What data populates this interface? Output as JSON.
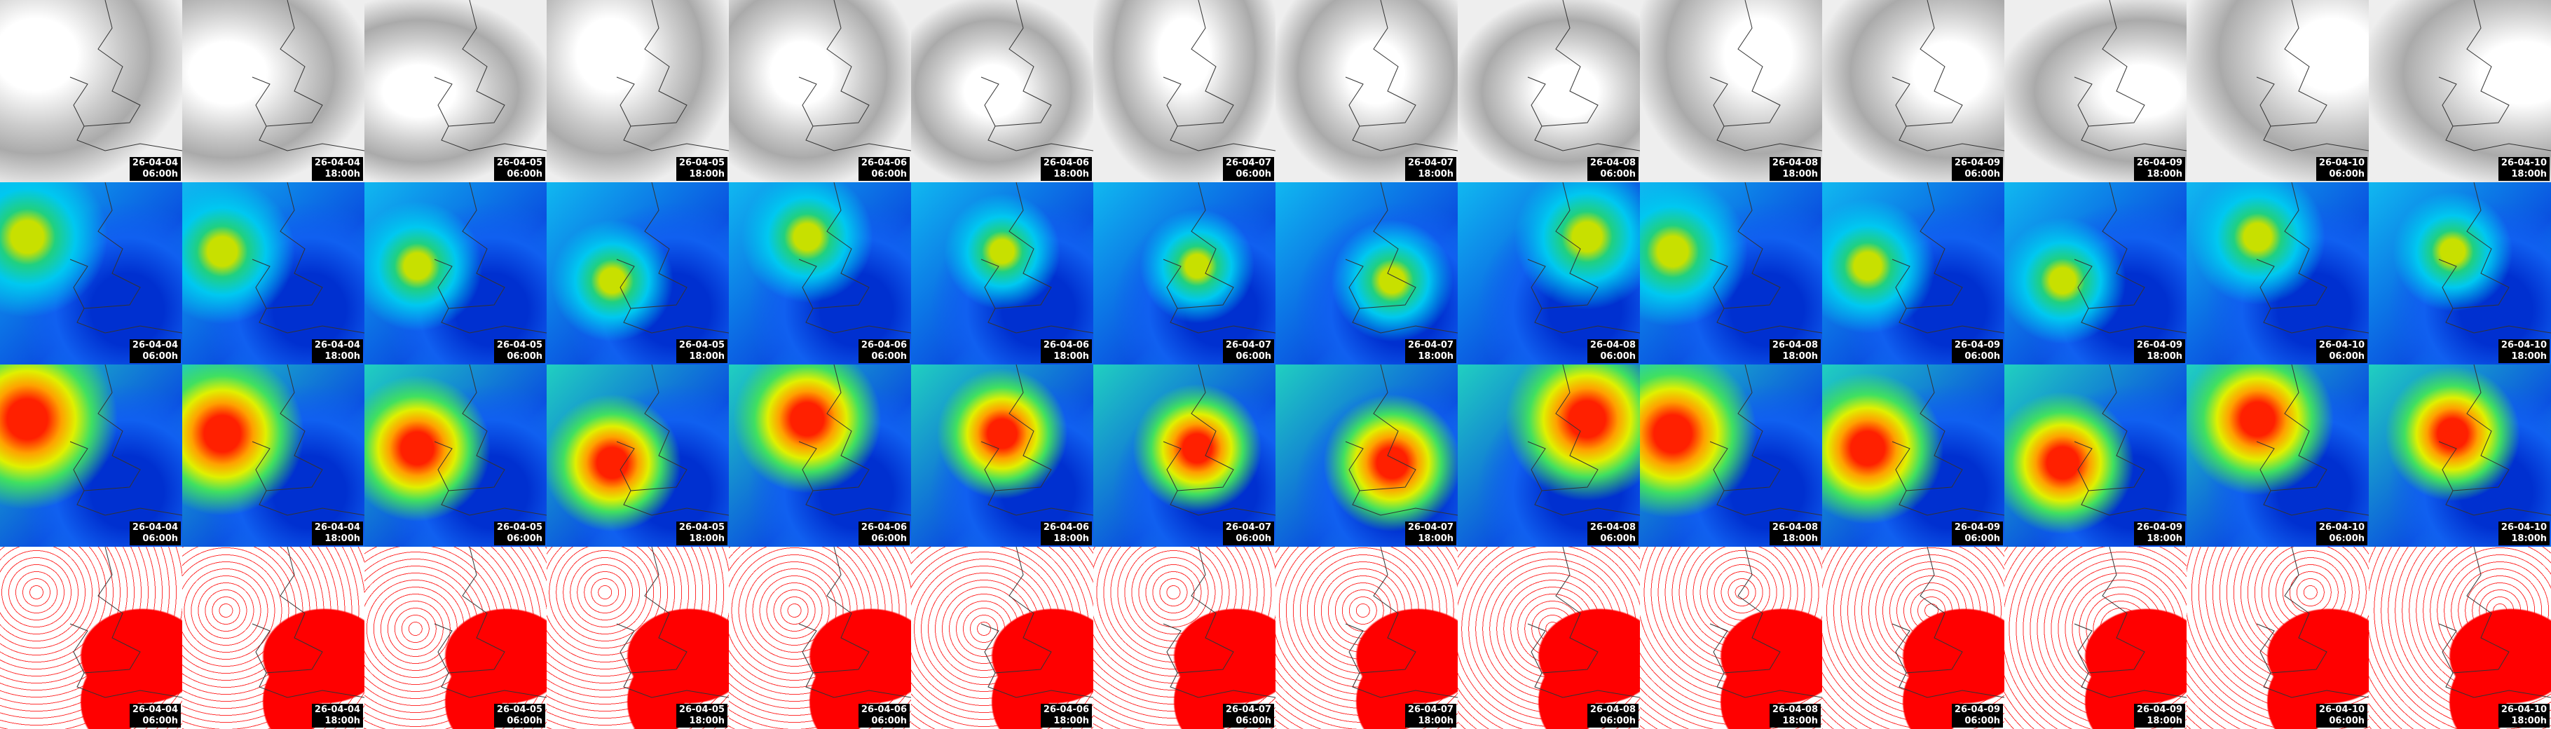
{
  "tiles": [
    {
      "date": "26-04-04",
      "time": "06:00h"
    },
    {
      "date": "26-04-04",
      "time": "18:00h"
    },
    {
      "date": "26-04-05",
      "time": "06:00h"
    },
    {
      "date": "26-04-05",
      "time": "18:00h"
    },
    {
      "date": "26-04-06",
      "time": "06:00h"
    },
    {
      "date": "26-04-06",
      "time": "18:00h"
    },
    {
      "date": "26-04-07",
      "time": "06:00h"
    },
    {
      "date": "26-04-07",
      "time": "18:00h"
    },
    {
      "date": "26-04-08",
      "time": "06:00h"
    },
    {
      "date": "26-04-08",
      "time": "18:00h"
    },
    {
      "date": "26-04-09",
      "time": "06:00h"
    },
    {
      "date": "26-04-09",
      "time": "18:00h"
    },
    {
      "date": "26-04-10",
      "time": "06:00h"
    },
    {
      "date": "26-04-10",
      "time": "18:00h"
    }
  ]
}
